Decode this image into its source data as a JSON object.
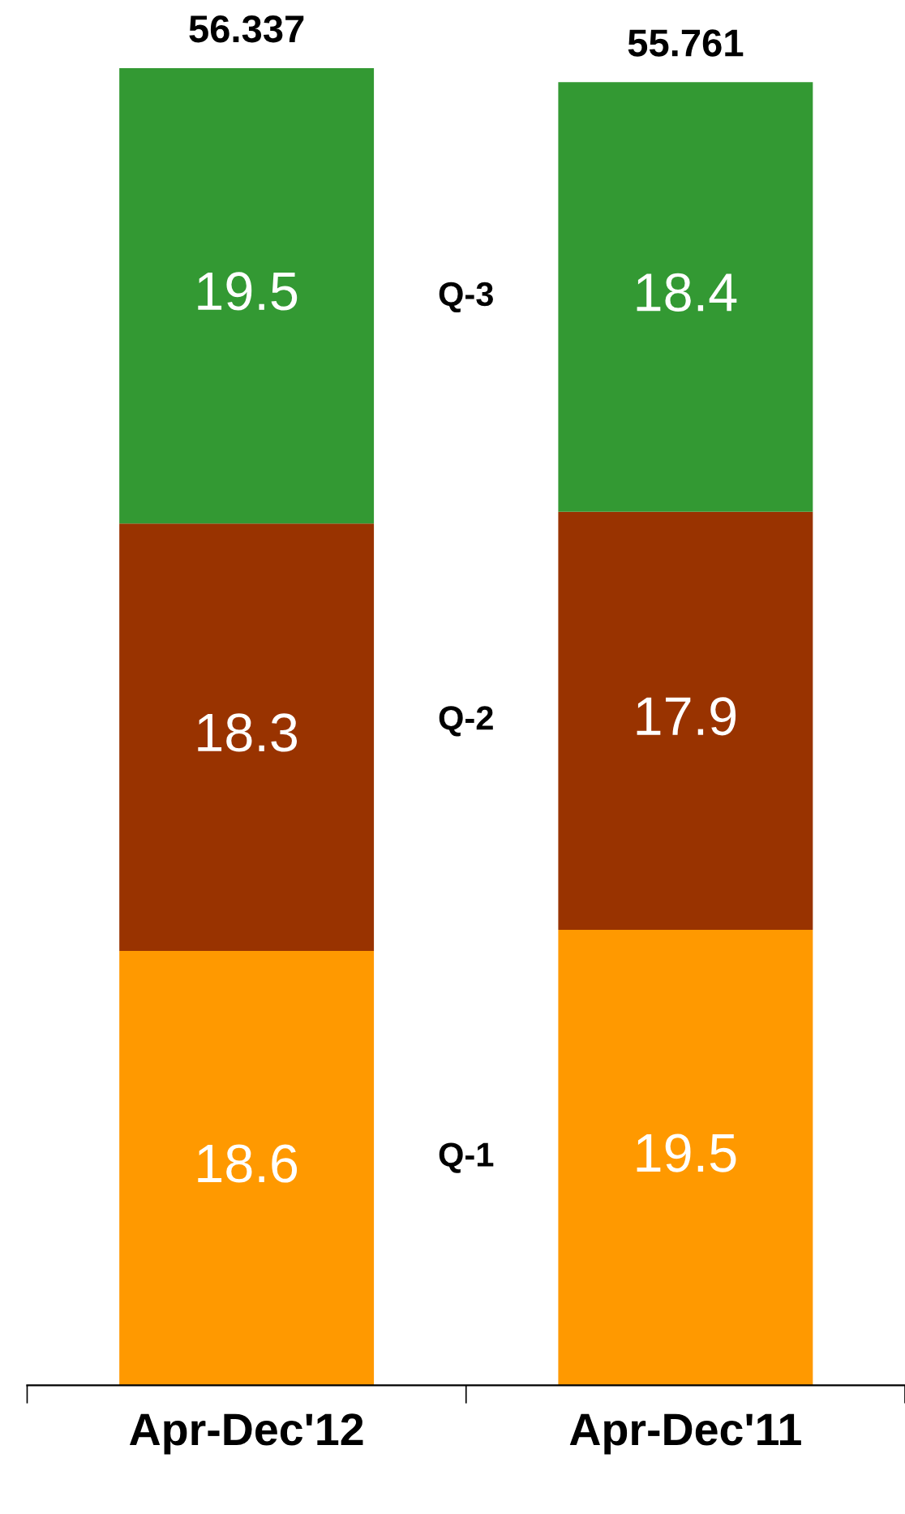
{
  "chart_data": {
    "type": "bar",
    "stacked": true,
    "categories": [
      "Apr-Dec'12",
      "Apr-Dec'11"
    ],
    "series": [
      {
        "name": "Q-1",
        "color": "#ff9900",
        "values": [
          18.6,
          19.5
        ]
      },
      {
        "name": "Q-2",
        "color": "#993300",
        "values": [
          18.3,
          17.9
        ]
      },
      {
        "name": "Q-3",
        "color": "#339933",
        "values": [
          19.5,
          18.4
        ]
      }
    ],
    "data_labels": true,
    "annotations": [
      {
        "text": "56.337",
        "x": "Apr-Dec'12",
        "y": 56.4
      },
      {
        "text": "55.761",
        "x": "Apr-Dec'11",
        "y": 55.8
      }
    ],
    "legend": false,
    "grid": false
  }
}
